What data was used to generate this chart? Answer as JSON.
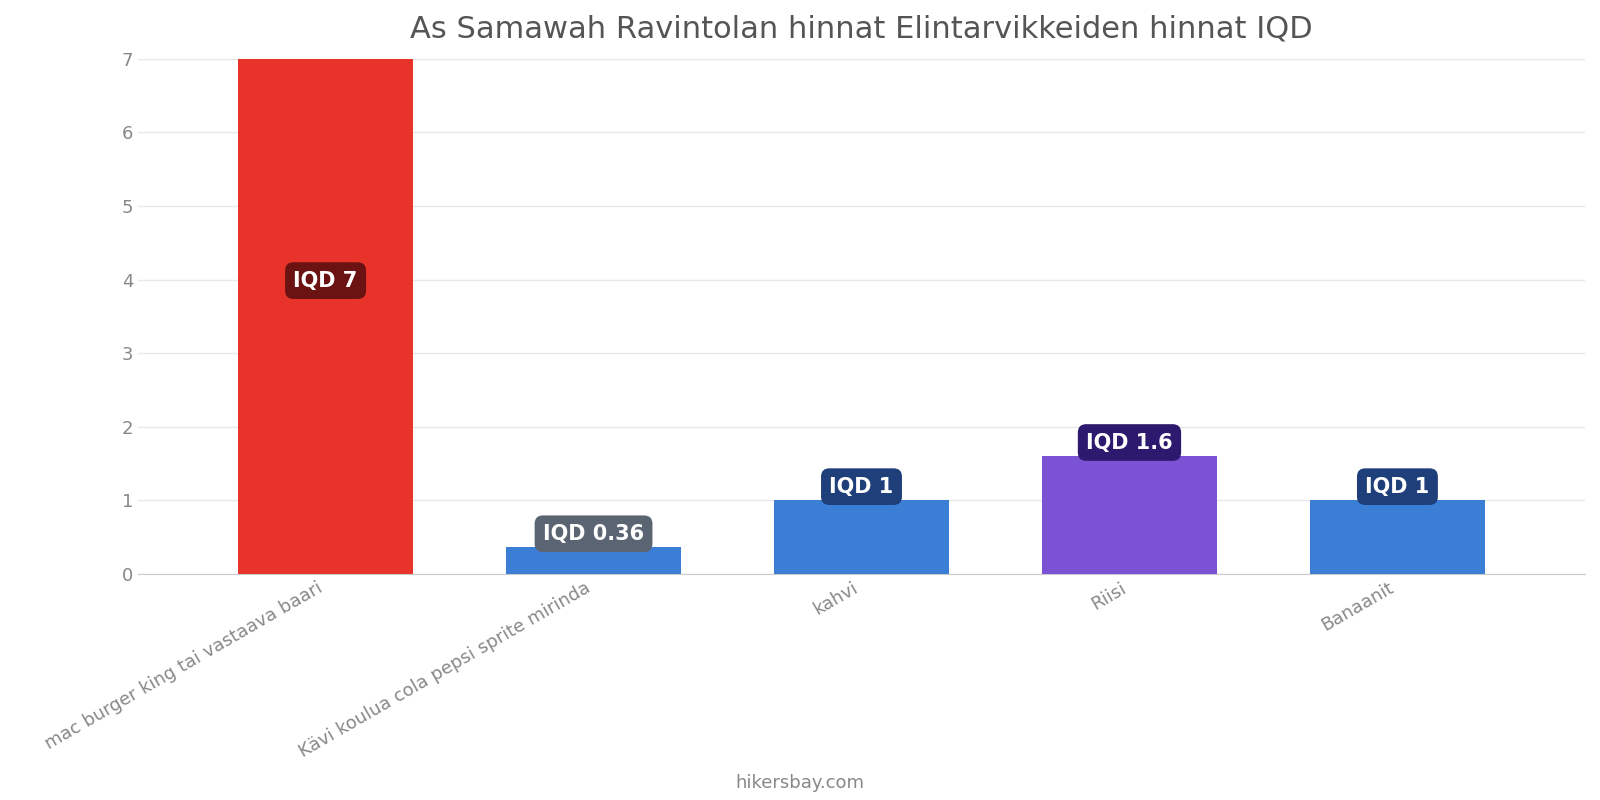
{
  "title": "As Samawah Ravintolan hinnat Elintarvikkeiden hinnat IQD",
  "categories": [
    "mac burger king tai vastaava baari",
    "Kävi koulua cola pepsi sprite mirinda",
    "kahvi",
    "Riisi",
    "Banaanit"
  ],
  "values": [
    7,
    0.36,
    1,
    1.6,
    1
  ],
  "bar_colors": [
    "#e8332a",
    "#3a7ed5",
    "#3a7ed5",
    "#7b52d4",
    "#3a7ed5"
  ],
  "label_bg_colors": [
    "#6b1212",
    "#5a6472",
    "#1e3f7a",
    "#2d1a6e",
    "#1e3f7a"
  ],
  "labels": [
    "IQD 7",
    "IQD 0.36",
    "IQD 1",
    "IQD 1.6",
    "IQD 1"
  ],
  "ylim": [
    0,
    7
  ],
  "yticks": [
    0,
    1,
    2,
    3,
    4,
    5,
    6,
    7
  ],
  "footer_text": "hikersbay.com",
  "background_color": "#ffffff",
  "grid_color": "#e8e8e8",
  "title_color": "#555555",
  "tick_color": "#888888",
  "title_fontsize": 22,
  "label_fontsize": 15,
  "tick_fontsize": 13,
  "footer_fontsize": 13
}
